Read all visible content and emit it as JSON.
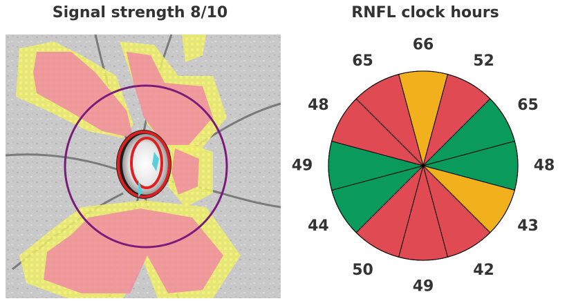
{
  "left_panel": {
    "title": "Signal strength 8/10"
  },
  "right_panel": {
    "title": "RNFL clock hours"
  },
  "clock": {
    "hours": [
      {
        "position": 12,
        "value": "66",
        "status": "borderline"
      },
      {
        "position": 1,
        "value": "52",
        "status": "below-normal"
      },
      {
        "position": 2,
        "value": "65",
        "status": "normal"
      },
      {
        "position": 3,
        "value": "48",
        "status": "normal"
      },
      {
        "position": 4,
        "value": "43",
        "status": "borderline"
      },
      {
        "position": 5,
        "value": "42",
        "status": "below-normal"
      },
      {
        "position": 6,
        "value": "49",
        "status": "below-normal"
      },
      {
        "position": 7,
        "value": "50",
        "status": "below-normal"
      },
      {
        "position": 8,
        "value": "44",
        "status": "normal"
      },
      {
        "position": 9,
        "value": "49",
        "status": "normal"
      },
      {
        "position": 10,
        "value": "48",
        "status": "below-normal"
      },
      {
        "position": 11,
        "value": "65",
        "status": "below-normal"
      }
    ]
  },
  "colors": {
    "normal": "#0a9a5c",
    "borderline": "#f2b11c",
    "below-normal": "#e04a52",
    "overlay_red": "#f08a9a",
    "overlay_yellow": "#eef070",
    "scan_circle": "#7a1a7a"
  }
}
